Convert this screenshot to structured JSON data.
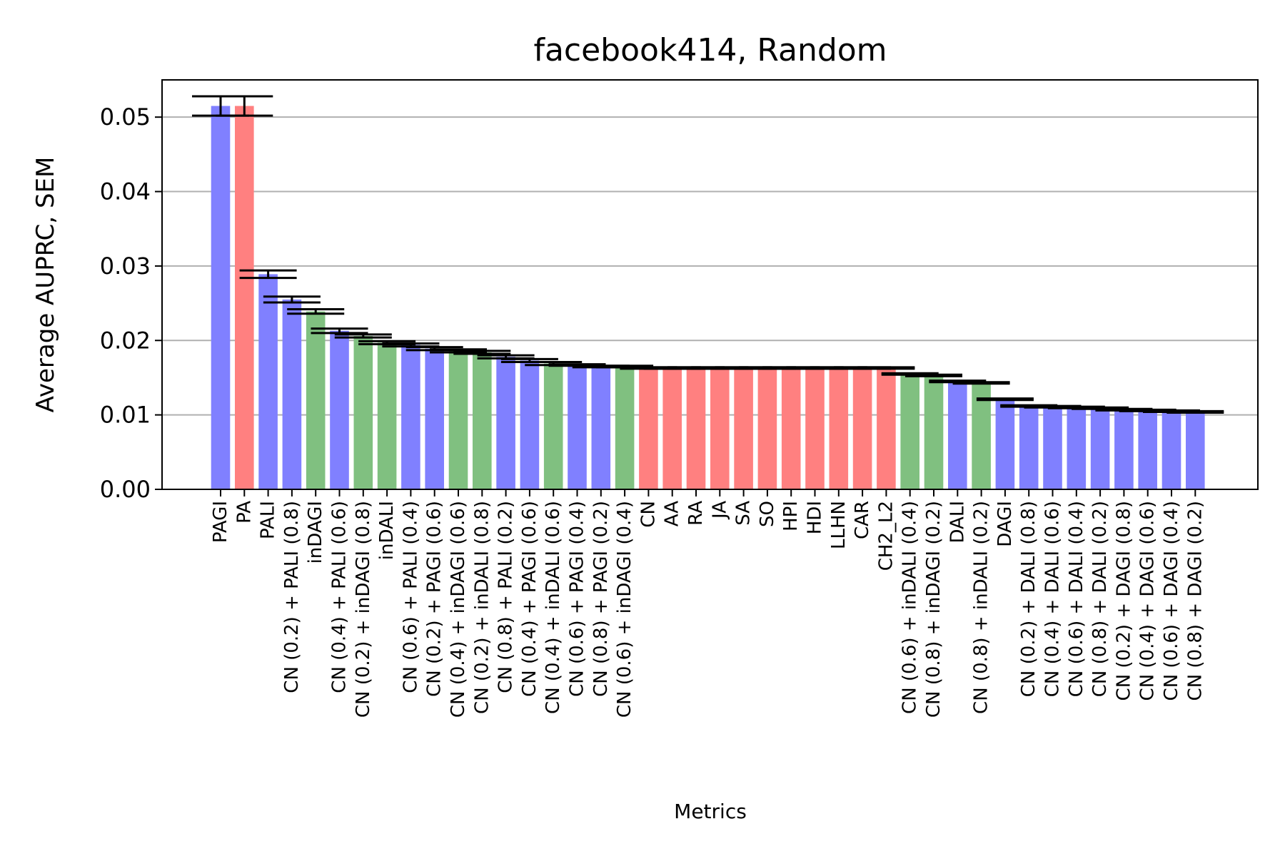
{
  "chart_data": {
    "type": "bar",
    "title": "facebook414, Random",
    "xlabel": "Metrics",
    "ylabel": "Average AUPRC, SEM",
    "ylim": [
      0,
      0.055
    ],
    "yticks": [
      "0.00",
      "0.01",
      "0.02",
      "0.03",
      "0.04",
      "0.05"
    ],
    "grid": "y",
    "colors": {
      "blue": "#8080ff",
      "red": "#ff8080",
      "green": "#80c080"
    },
    "bars": [
      {
        "label": "PAGI",
        "value": 0.0515,
        "err": 0.0013,
        "color": "blue"
      },
      {
        "label": "PA",
        "value": 0.0515,
        "err": 0.0013,
        "color": "red"
      },
      {
        "label": "PALI",
        "value": 0.0289,
        "err": 0.0005,
        "color": "blue"
      },
      {
        "label": "CN (0.2) + PALI (0.8)",
        "value": 0.0255,
        "err": 0.0004,
        "color": "blue"
      },
      {
        "label": "inDAGI",
        "value": 0.0239,
        "err": 0.0003,
        "color": "green"
      },
      {
        "label": "CN (0.4) + PALI (0.6)",
        "value": 0.0213,
        "err": 0.0003,
        "color": "blue"
      },
      {
        "label": "CN (0.2) + inDAGI (0.8)",
        "value": 0.0206,
        "err": 0.0002,
        "color": "green"
      },
      {
        "label": "inDALI",
        "value": 0.0197,
        "err": 0.0002,
        "color": "green"
      },
      {
        "label": "CN (0.6) + PALI (0.4)",
        "value": 0.0194,
        "err": 0.0002,
        "color": "blue"
      },
      {
        "label": "CN (0.2) + PAGI (0.6)",
        "value": 0.0189,
        "err": 0.0002,
        "color": "blue"
      },
      {
        "label": "CN (0.4) + inDAGI (0.6)",
        "value": 0.0186,
        "err": 0.0002,
        "color": "green"
      },
      {
        "label": "CN (0.2) + inDALI (0.8)",
        "value": 0.0184,
        "err": 0.0002,
        "color": "green"
      },
      {
        "label": "CN (0.8) + PALI (0.2)",
        "value": 0.0178,
        "err": 0.0002,
        "color": "blue"
      },
      {
        "label": "CN (0.4) + PAGI (0.6)",
        "value": 0.0173,
        "err": 0.0002,
        "color": "blue"
      },
      {
        "label": "CN (0.4) + inDALI (0.6)",
        "value": 0.0169,
        "err": 0.0002,
        "color": "green"
      },
      {
        "label": "CN (0.6) + PAGI (0.4)",
        "value": 0.0167,
        "err": 0.0001,
        "color": "blue"
      },
      {
        "label": "CN (0.8) + PAGI (0.2)",
        "value": 0.0165,
        "err": 0.0001,
        "color": "blue"
      },
      {
        "label": "CN (0.6) + inDAGI (0.4)",
        "value": 0.0165,
        "err": 0.0001,
        "color": "green"
      },
      {
        "label": "CN",
        "value": 0.0163,
        "err": 0.0001,
        "color": "red"
      },
      {
        "label": "AA",
        "value": 0.0163,
        "err": 0.0001,
        "color": "red"
      },
      {
        "label": "RA",
        "value": 0.0163,
        "err": 0.0001,
        "color": "red"
      },
      {
        "label": "JA",
        "value": 0.0163,
        "err": 0.0001,
        "color": "red"
      },
      {
        "label": "SA",
        "value": 0.0163,
        "err": 0.0001,
        "color": "red"
      },
      {
        "label": "SO",
        "value": 0.0163,
        "err": 0.0001,
        "color": "red"
      },
      {
        "label": "HPI",
        "value": 0.0163,
        "err": 0.0001,
        "color": "red"
      },
      {
        "label": "HDI",
        "value": 0.0163,
        "err": 0.0001,
        "color": "red"
      },
      {
        "label": "LLHN",
        "value": 0.0163,
        "err": 0.0001,
        "color": "red"
      },
      {
        "label": "CAR",
        "value": 0.0163,
        "err": 0.0001,
        "color": "red"
      },
      {
        "label": "CH2_L2",
        "value": 0.0163,
        "err": 0.0001,
        "color": "red"
      },
      {
        "label": "CN (0.6) + inDALI (0.4)",
        "value": 0.0155,
        "err": 0.0001,
        "color": "green"
      },
      {
        "label": "CN (0.8) + inDAGI (0.2)",
        "value": 0.0153,
        "err": 0.0001,
        "color": "green"
      },
      {
        "label": "DALI",
        "value": 0.0145,
        "err": 0.0001,
        "color": "blue"
      },
      {
        "label": "CN (0.8) + inDALI (0.2)",
        "value": 0.0143,
        "err": 0.0001,
        "color": "green"
      },
      {
        "label": "DAGI",
        "value": 0.0121,
        "err": 0.0001,
        "color": "blue"
      },
      {
        "label": "CN (0.2) + DALI (0.8)",
        "value": 0.0112,
        "err": 0.0001,
        "color": "blue"
      },
      {
        "label": "CN (0.4) + DALI (0.6)",
        "value": 0.0111,
        "err": 0.0001,
        "color": "blue"
      },
      {
        "label": "CN (0.6) + DALI (0.4)",
        "value": 0.011,
        "err": 0.0001,
        "color": "blue"
      },
      {
        "label": "CN (0.8) + DALI (0.2)",
        "value": 0.0109,
        "err": 0.0001,
        "color": "blue"
      },
      {
        "label": "CN (0.2) + DAGI (0.8)",
        "value": 0.0107,
        "err": 0.0001,
        "color": "blue"
      },
      {
        "label": "CN (0.4) + DAGI (0.6)",
        "value": 0.0106,
        "err": 0.0001,
        "color": "blue"
      },
      {
        "label": "CN (0.6) + DAGI (0.4)",
        "value": 0.0105,
        "err": 0.0001,
        "color": "blue"
      },
      {
        "label": "CN (0.8) + DAGI (0.2)",
        "value": 0.0104,
        "err": 0.0001,
        "color": "blue"
      }
    ]
  }
}
